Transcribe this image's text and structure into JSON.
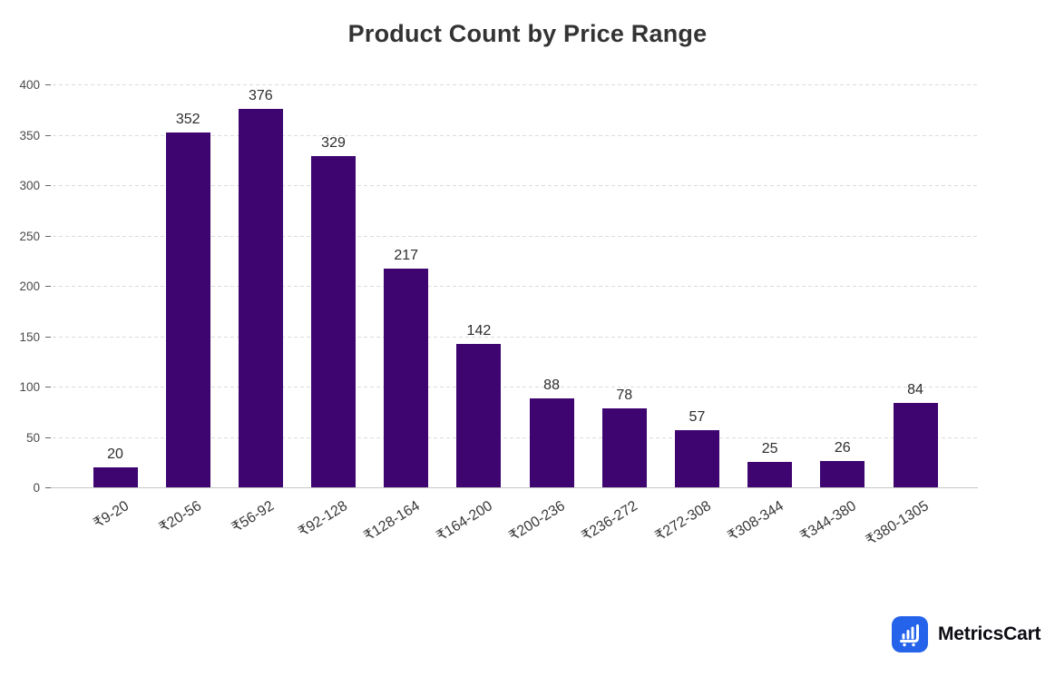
{
  "chart_data": {
    "type": "bar",
    "title": "Product Count by Price Range",
    "categories": [
      "₹9-20",
      "₹20-56",
      "₹56-92",
      "₹92-128",
      "₹128-164",
      "₹164-200",
      "₹200-236",
      "₹236-272",
      "₹272-308",
      "₹308-344",
      "₹344-380",
      "₹380-1305"
    ],
    "values": [
      20,
      352,
      376,
      329,
      217,
      142,
      88,
      78,
      57,
      25,
      26,
      84
    ],
    "xlabel": "",
    "ylabel": "",
    "ylim": [
      0,
      400
    ],
    "yticks": [
      0,
      50,
      100,
      150,
      200,
      250,
      300,
      350,
      400
    ],
    "grid": true,
    "gridline_style": "dashed",
    "legend": false,
    "value_labels": true,
    "bar_color": "#3E0570",
    "grid_color": "#dcdcdc",
    "axis_color": "#c6c6c6",
    "tick_label_color": "#4a4a4a",
    "value_label_color": "#2d2d2d",
    "title_color": "#333333"
  },
  "branding": {
    "name": "MetricsCart",
    "logo_icon": "bar-chart-cart-icon",
    "logo_bg_color": "#2563eb",
    "logo_glyph_color": "#ffffff",
    "text_color": "#0d0d14"
  }
}
